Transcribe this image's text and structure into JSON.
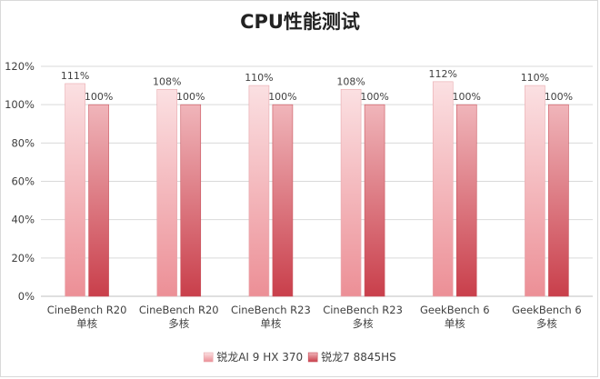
{
  "chart_data": {
    "type": "bar",
    "title": "CPU性能测试",
    "categories": [
      [
        "CineBench R20",
        "单核"
      ],
      [
        "CineBench R20",
        "多核"
      ],
      [
        "CineBench R23",
        "单核"
      ],
      [
        "CineBench R23",
        "多核"
      ],
      [
        "GeekBench 6",
        "单核"
      ],
      [
        "GeekBench 6",
        "多核"
      ]
    ],
    "series": [
      {
        "name": "锐龙AI 9 HX 370",
        "values": [
          111,
          108,
          110,
          108,
          112,
          110
        ],
        "labels": [
          "111%",
          "108%",
          "110%",
          "108%",
          "112%",
          "110%"
        ],
        "color_top": "#fbe0e2",
        "color_bottom": "#ec8f96",
        "stroke": "#e8a9ae"
      },
      {
        "name": "锐龙7 8845HS",
        "values": [
          100,
          100,
          100,
          100,
          100,
          100
        ],
        "labels": [
          "100%",
          "100%",
          "100%",
          "100%",
          "100%",
          "100%"
        ],
        "color_top": "#f0b5ba",
        "color_bottom": "#c93f4b",
        "stroke": "#c9525c"
      }
    ],
    "ylim": [
      0,
      120
    ],
    "yticks": [
      0,
      20,
      40,
      60,
      80,
      100,
      120
    ],
    "ytick_labels": [
      "0%",
      "20%",
      "40%",
      "60%",
      "80%",
      "100%",
      "120%"
    ],
    "xlabel": "",
    "ylabel": "",
    "grid": true,
    "legend_position": "bottom"
  }
}
